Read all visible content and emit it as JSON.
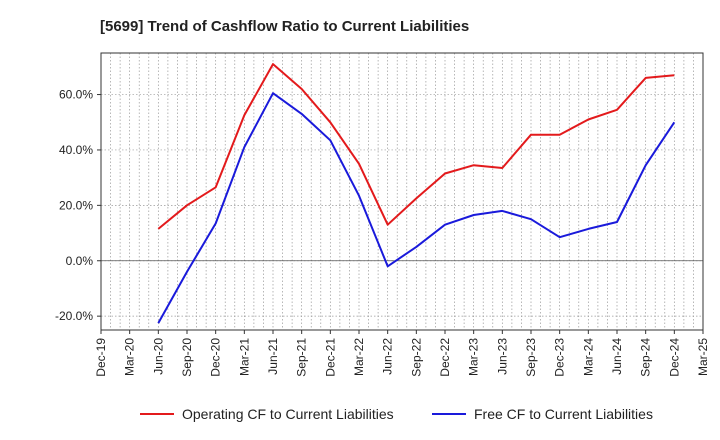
{
  "chart_data": {
    "type": "line",
    "title": "[5699]  Trend of Cashflow Ratio to Current Liabilities",
    "xlabel": "",
    "ylabel": "",
    "x_ticks": [
      "Dec-19",
      "Mar-20",
      "Jun-20",
      "Sep-20",
      "Dec-20",
      "Mar-21",
      "Jun-21",
      "Sep-21",
      "Dec-21",
      "Mar-22",
      "Jun-22",
      "Sep-22",
      "Dec-22",
      "Mar-23",
      "Jun-23",
      "Sep-23",
      "Dec-23",
      "Mar-24",
      "Jun-24",
      "Sep-24",
      "Dec-24",
      "Mar-25"
    ],
    "y_ticks": [
      "60.0%",
      "40.0%",
      "20.0%",
      "0.0%",
      "-20.0%"
    ],
    "y_tick_values": [
      60,
      40,
      20,
      0,
      -20
    ],
    "ylim": [
      -25,
      75
    ],
    "grid": true,
    "legend_position": "bottom",
    "series": [
      {
        "name": "Operating CF to Current Liabilities",
        "color": "#e31a1c",
        "x": [
          "Jun-20",
          "Sep-20",
          "Dec-20",
          "Mar-21",
          "Jun-21",
          "Sep-21",
          "Dec-21",
          "Mar-22",
          "Jun-22",
          "Sep-22",
          "Dec-22",
          "Mar-23",
          "Jun-23",
          "Sep-23",
          "Dec-23",
          "Mar-24",
          "Jun-24",
          "Sep-24",
          "Dec-24"
        ],
        "values": [
          11.5,
          20.0,
          26.5,
          52.5,
          71.0,
          62.0,
          50.0,
          35.0,
          13.0,
          22.5,
          31.5,
          34.5,
          33.5,
          45.5,
          45.5,
          51.0,
          54.5,
          66.0,
          67.0
        ]
      },
      {
        "name": "Free CF to Current Liabilities",
        "color": "#1a1adb",
        "x": [
          "Jun-20",
          "Sep-20",
          "Dec-20",
          "Mar-21",
          "Jun-21",
          "Sep-21",
          "Dec-21",
          "Mar-22",
          "Jun-22",
          "Sep-22",
          "Dec-22",
          "Mar-23",
          "Jun-23",
          "Sep-23",
          "Dec-23",
          "Mar-24",
          "Jun-24",
          "Sep-24",
          "Dec-24"
        ],
        "values": [
          -22.5,
          -4.0,
          13.5,
          41.0,
          60.5,
          53.0,
          43.5,
          23.5,
          -2.0,
          5.0,
          13.0,
          16.5,
          18.0,
          15.0,
          8.5,
          11.5,
          14.0,
          34.5,
          50.0
        ]
      }
    ]
  }
}
